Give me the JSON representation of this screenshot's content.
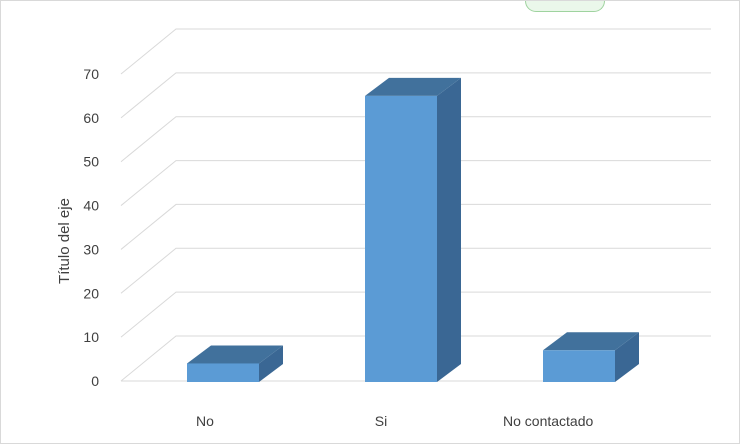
{
  "chart_data": {
    "type": "bar",
    "style": "3d-column",
    "title": "",
    "categories": [
      "No",
      "Si",
      "No contactado"
    ],
    "values": [
      4,
      65,
      7
    ],
    "xlabel": "",
    "ylabel": "Título del eje",
    "ylim": [
      0,
      70
    ],
    "yticks": [
      0,
      10,
      20,
      30,
      40,
      50,
      60,
      70
    ],
    "grid": true,
    "legend": "none",
    "colors": {
      "bar_front": "#5b9bd5",
      "bar_top": "#41719c",
      "bar_side": "#3a6794",
      "grid": "#d9d9d9",
      "text": "#404040"
    }
  }
}
